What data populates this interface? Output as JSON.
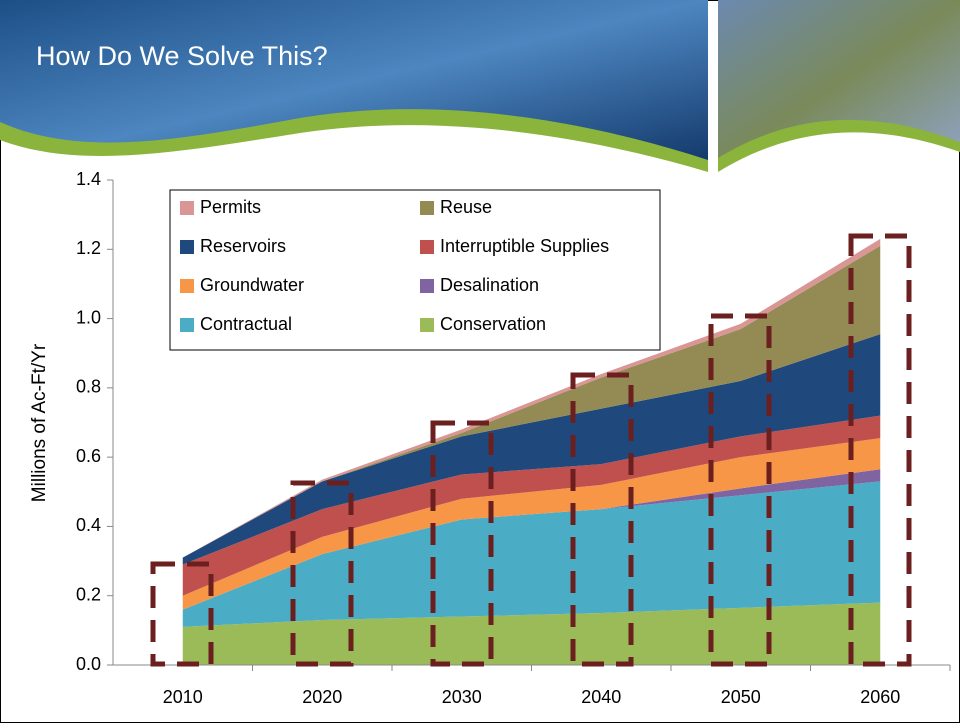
{
  "header": {
    "title": "How Do We Solve This?"
  },
  "chart_data": {
    "type": "area",
    "stacked": true,
    "y_label": "Millions of Ac-Ft/Yr",
    "categories": [
      "2010",
      "2020",
      "2030",
      "2040",
      "2050",
      "2060"
    ],
    "ylim": [
      0,
      1.4
    ],
    "yticks": [
      {
        "value": 0,
        "label": "0.0"
      },
      0.2,
      0.4,
      0.6,
      0.8,
      {
        "value": 1,
        "label": "1.0"
      },
      1.2,
      1.4
    ],
    "series": [
      {
        "name": "Conservation",
        "color": "#9bbb59",
        "values": [
          0.11,
          0.13,
          0.14,
          0.15,
          0.165,
          0.18
        ]
      },
      {
        "name": "Contractual",
        "color": "#4bacc6",
        "values": [
          0.05,
          0.19,
          0.28,
          0.3,
          0.325,
          0.35
        ]
      },
      {
        "name": "Desalination",
        "color": "#8064a2",
        "values": [
          0,
          0,
          0,
          0,
          0.02,
          0.035
        ]
      },
      {
        "name": "Groundwater",
        "color": "#f79646",
        "values": [
          0.04,
          0.05,
          0.06,
          0.07,
          0.09,
          0.09
        ]
      },
      {
        "name": "Interruptible Supplies",
        "color": "#c0504d",
        "values": [
          0.09,
          0.08,
          0.07,
          0.06,
          0.06,
          0.065
        ]
      },
      {
        "name": "Reservoirs",
        "color": "#1f497d",
        "values": [
          0.02,
          0.08,
          0.11,
          0.16,
          0.16,
          0.235
        ]
      },
      {
        "name": "Reuse",
        "color": "#948a54",
        "values": [
          0,
          0,
          0.01,
          0.09,
          0.15,
          0.255
        ]
      },
      {
        "name": "Permits",
        "color": "#d99694",
        "values": [
          0,
          0.005,
          0.01,
          0.01,
          0.015,
          0.02
        ]
      }
    ]
  }
}
